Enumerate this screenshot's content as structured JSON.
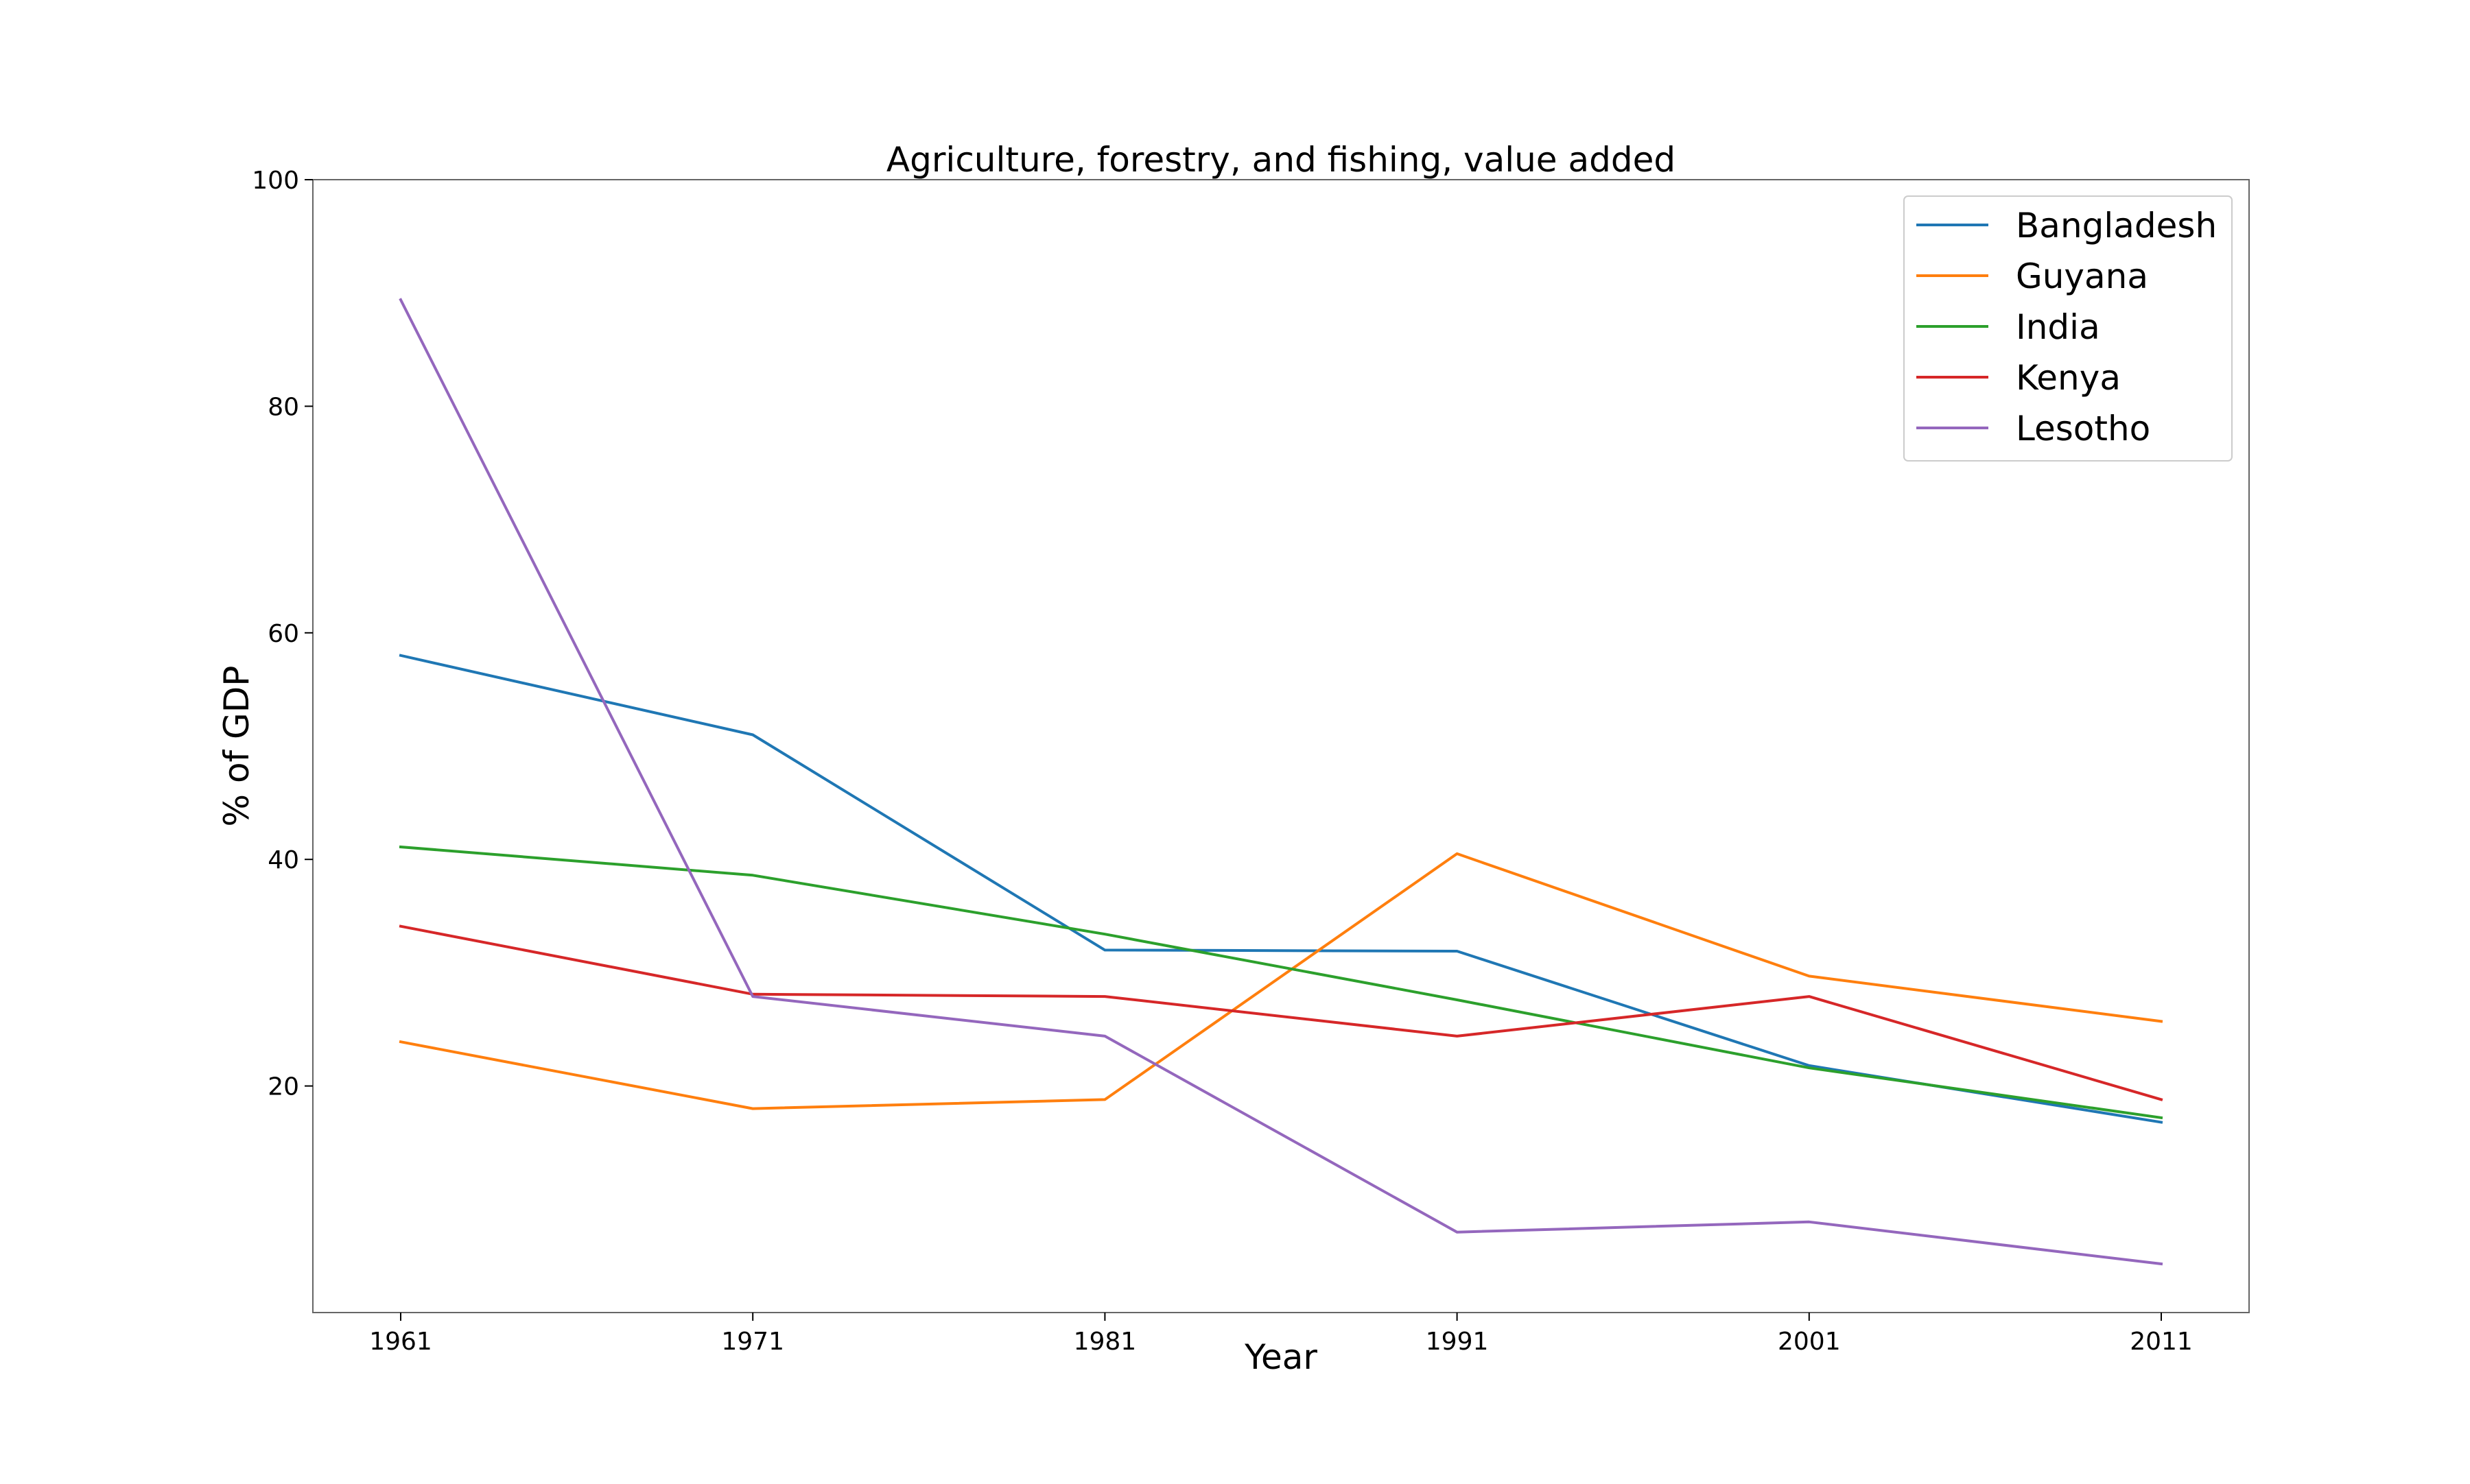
{
  "chart_data": {
    "type": "line",
    "title": "Agriculture, forestry, and fishing, value added",
    "xlabel": "Year",
    "ylabel": "% of GDP",
    "x": [
      1961,
      1971,
      1981,
      1991,
      2001,
      2011
    ],
    "x_tick_labels": [
      "1961",
      "1971",
      "1981",
      "1991",
      "2001",
      "2011"
    ],
    "ylim": [
      0,
      100
    ],
    "y_ticks": [
      20,
      40,
      60,
      80,
      100
    ],
    "y_tick_labels": [
      "20",
      "40",
      "60",
      "80",
      "100"
    ],
    "grid": false,
    "legend_position": "top-right",
    "series": [
      {
        "name": "Bangladesh",
        "color": "#1f77b4",
        "values": [
          58.0,
          51.0,
          32.0,
          31.9,
          21.8,
          16.8
        ]
      },
      {
        "name": "Guyana",
        "color": "#ff7f0e",
        "values": [
          23.9,
          18.0,
          18.8,
          40.5,
          29.7,
          25.7
        ]
      },
      {
        "name": "India",
        "color": "#2ca02c",
        "values": [
          41.1,
          38.6,
          33.4,
          27.6,
          21.6,
          17.2
        ]
      },
      {
        "name": "Kenya",
        "color": "#d62728",
        "values": [
          34.1,
          28.1,
          27.9,
          24.4,
          27.9,
          18.8
        ]
      },
      {
        "name": "Lesotho",
        "color": "#9467bd",
        "values": [
          89.4,
          27.9,
          24.4,
          7.1,
          8.0,
          4.3
        ]
      }
    ]
  }
}
